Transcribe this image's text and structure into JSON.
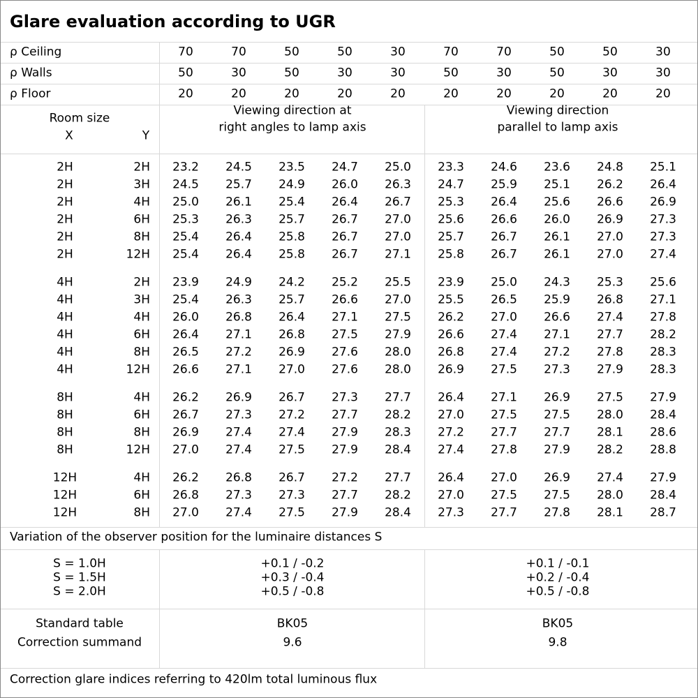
{
  "title": "Glare evaluation according to UGR",
  "reflectances": [
    {
      "label": "ρ Ceiling",
      "values": [
        "70",
        "70",
        "50",
        "50",
        "30",
        "70",
        "70",
        "50",
        "50",
        "30"
      ]
    },
    {
      "label": "ρ Walls",
      "values": [
        "50",
        "30",
        "50",
        "30",
        "30",
        "50",
        "30",
        "50",
        "30",
        "30"
      ]
    },
    {
      "label": "ρ Floor",
      "values": [
        "20",
        "20",
        "20",
        "20",
        "20",
        "20",
        "20",
        "20",
        "20",
        "20"
      ]
    }
  ],
  "header": {
    "room_size": "Room size",
    "x": "X",
    "y": "Y",
    "right_angles": [
      "Viewing direction at",
      "right angles to lamp axis"
    ],
    "parallel": [
      "Viewing direction",
      "parallel to lamp axis"
    ]
  },
  "ugr_table": [
    [
      {
        "x": "2H",
        "y": "2H",
        "values": [
          "23.2",
          "24.5",
          "23.5",
          "24.7",
          "25.0",
          "23.3",
          "24.6",
          "23.6",
          "24.8",
          "25.1"
        ]
      },
      {
        "x": "2H",
        "y": "3H",
        "values": [
          "24.5",
          "25.7",
          "24.9",
          "26.0",
          "26.3",
          "24.7",
          "25.9",
          "25.1",
          "26.2",
          "26.4"
        ]
      },
      {
        "x": "2H",
        "y": "4H",
        "values": [
          "25.0",
          "26.1",
          "25.4",
          "26.4",
          "26.7",
          "25.3",
          "26.4",
          "25.6",
          "26.6",
          "26.9"
        ]
      },
      {
        "x": "2H",
        "y": "6H",
        "values": [
          "25.3",
          "26.3",
          "25.7",
          "26.7",
          "27.0",
          "25.6",
          "26.6",
          "26.0",
          "26.9",
          "27.3"
        ]
      },
      {
        "x": "2H",
        "y": "8H",
        "values": [
          "25.4",
          "26.4",
          "25.8",
          "26.7",
          "27.0",
          "25.7",
          "26.7",
          "26.1",
          "27.0",
          "27.3"
        ]
      },
      {
        "x": "2H",
        "y": "12H",
        "values": [
          "25.4",
          "26.4",
          "25.8",
          "26.7",
          "27.1",
          "25.8",
          "26.7",
          "26.1",
          "27.0",
          "27.4"
        ]
      }
    ],
    [
      {
        "x": "4H",
        "y": "2H",
        "values": [
          "23.9",
          "24.9",
          "24.2",
          "25.2",
          "25.5",
          "23.9",
          "25.0",
          "24.3",
          "25.3",
          "25.6"
        ]
      },
      {
        "x": "4H",
        "y": "3H",
        "values": [
          "25.4",
          "26.3",
          "25.7",
          "26.6",
          "27.0",
          "25.5",
          "26.5",
          "25.9",
          "26.8",
          "27.1"
        ]
      },
      {
        "x": "4H",
        "y": "4H",
        "values": [
          "26.0",
          "26.8",
          "26.4",
          "27.1",
          "27.5",
          "26.2",
          "27.0",
          "26.6",
          "27.4",
          "27.8"
        ]
      },
      {
        "x": "4H",
        "y": "6H",
        "values": [
          "26.4",
          "27.1",
          "26.8",
          "27.5",
          "27.9",
          "26.6",
          "27.4",
          "27.1",
          "27.7",
          "28.2"
        ]
      },
      {
        "x": "4H",
        "y": "8H",
        "values": [
          "26.5",
          "27.2",
          "26.9",
          "27.6",
          "28.0",
          "26.8",
          "27.4",
          "27.2",
          "27.8",
          "28.3"
        ]
      },
      {
        "x": "4H",
        "y": "12H",
        "values": [
          "26.6",
          "27.1",
          "27.0",
          "27.6",
          "28.0",
          "26.9",
          "27.5",
          "27.3",
          "27.9",
          "28.3"
        ]
      }
    ],
    [
      {
        "x": "8H",
        "y": "4H",
        "values": [
          "26.2",
          "26.9",
          "26.7",
          "27.3",
          "27.7",
          "26.4",
          "27.1",
          "26.9",
          "27.5",
          "27.9"
        ]
      },
      {
        "x": "8H",
        "y": "6H",
        "values": [
          "26.7",
          "27.3",
          "27.2",
          "27.7",
          "28.2",
          "27.0",
          "27.5",
          "27.5",
          "28.0",
          "28.4"
        ]
      },
      {
        "x": "8H",
        "y": "8H",
        "values": [
          "26.9",
          "27.4",
          "27.4",
          "27.9",
          "28.3",
          "27.2",
          "27.7",
          "27.7",
          "28.1",
          "28.6"
        ]
      },
      {
        "x": "8H",
        "y": "12H",
        "values": [
          "27.0",
          "27.4",
          "27.5",
          "27.9",
          "28.4",
          "27.4",
          "27.8",
          "27.9",
          "28.2",
          "28.8"
        ]
      }
    ],
    [
      {
        "x": "12H",
        "y": "4H",
        "values": [
          "26.2",
          "26.8",
          "26.7",
          "27.2",
          "27.7",
          "26.4",
          "27.0",
          "26.9",
          "27.4",
          "27.9"
        ]
      },
      {
        "x": "12H",
        "y": "6H",
        "values": [
          "26.8",
          "27.3",
          "27.3",
          "27.7",
          "28.2",
          "27.0",
          "27.5",
          "27.5",
          "28.0",
          "28.4"
        ]
      },
      {
        "x": "12H",
        "y": "8H",
        "values": [
          "27.0",
          "27.4",
          "27.5",
          "27.9",
          "28.4",
          "27.3",
          "27.7",
          "27.8",
          "28.1",
          "28.7"
        ]
      }
    ]
  ],
  "variation": {
    "title": "Variation of the observer position for the luminaire distances S",
    "rows": [
      {
        "label": "S = 1.0H",
        "right_angles": "+0.1 / -0.2",
        "parallel": "+0.1 / -0.1"
      },
      {
        "label": "S = 1.5H",
        "right_angles": "+0.3 / -0.4",
        "parallel": "+0.2 / -0.4"
      },
      {
        "label": "S = 2.0H",
        "right_angles": "+0.5 / -0.8",
        "parallel": "+0.5 / -0.8"
      }
    ]
  },
  "standard": {
    "labels": [
      "Standard table",
      "Correction summand"
    ],
    "right_angles": [
      "BK05",
      "9.6"
    ],
    "parallel": [
      "BK05",
      "9.8"
    ]
  },
  "footer": "Correction glare indices referring to 420lm total luminous flux"
}
